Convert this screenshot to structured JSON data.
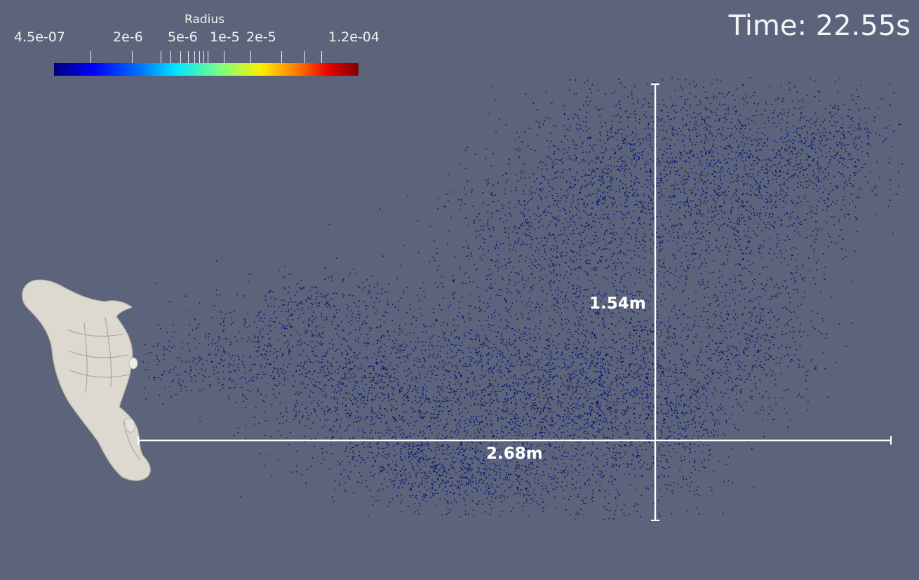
{
  "colorbar": {
    "title": "Radius",
    "tick_labels": [
      "4.5e-07",
      "2e-6",
      "5e-6",
      "1e-5",
      "2e-5",
      "1.2e-04"
    ]
  },
  "time_label": "Time: 22.55s",
  "dimensions": {
    "width_label": "2.68m",
    "height_label": "1.54m"
  },
  "colors": {
    "background": "#5c647b",
    "particles": "#0b1270",
    "measure_lines": "#ffffff",
    "body": "#ddd8d0"
  }
}
